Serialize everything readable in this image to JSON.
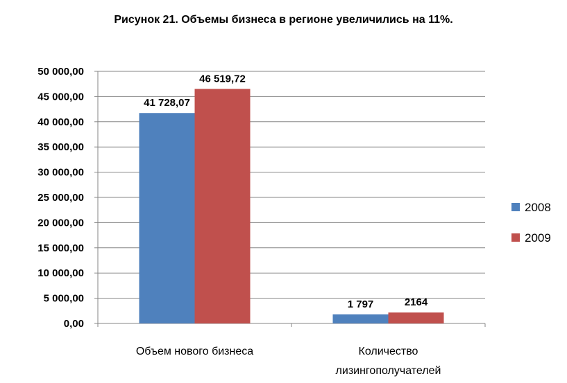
{
  "chart_data": {
    "type": "bar",
    "title": "Рисунок 21. Объемы бизнеса в регионе увеличились на 11%.",
    "categories": [
      [
        "Объем нового бизнеса"
      ],
      [
        "Количество",
        "лизингополучателей"
      ]
    ],
    "series": [
      {
        "name": "2008",
        "color": "#4F81BD",
        "values": [
          41728.07,
          1797
        ],
        "labels": [
          "41 728,07",
          "1 797"
        ]
      },
      {
        "name": "2009",
        "color": "#C0504D",
        "values": [
          46519.72,
          2164
        ],
        "labels": [
          "46 519,72",
          "2164"
        ]
      }
    ],
    "ylim": [
      0,
      50000
    ],
    "yticks": [
      0,
      5000,
      10000,
      15000,
      20000,
      25000,
      30000,
      35000,
      40000,
      45000,
      50000
    ],
    "ytick_labels": [
      "0,00",
      "5 000,00",
      "10 000,00",
      "15 000,00",
      "20 000,00",
      "25 000,00",
      "30 000,00",
      "35 000,00",
      "40 000,00",
      "45 000,00",
      "50 000,00"
    ],
    "grid": true,
    "legend_position": "right"
  }
}
